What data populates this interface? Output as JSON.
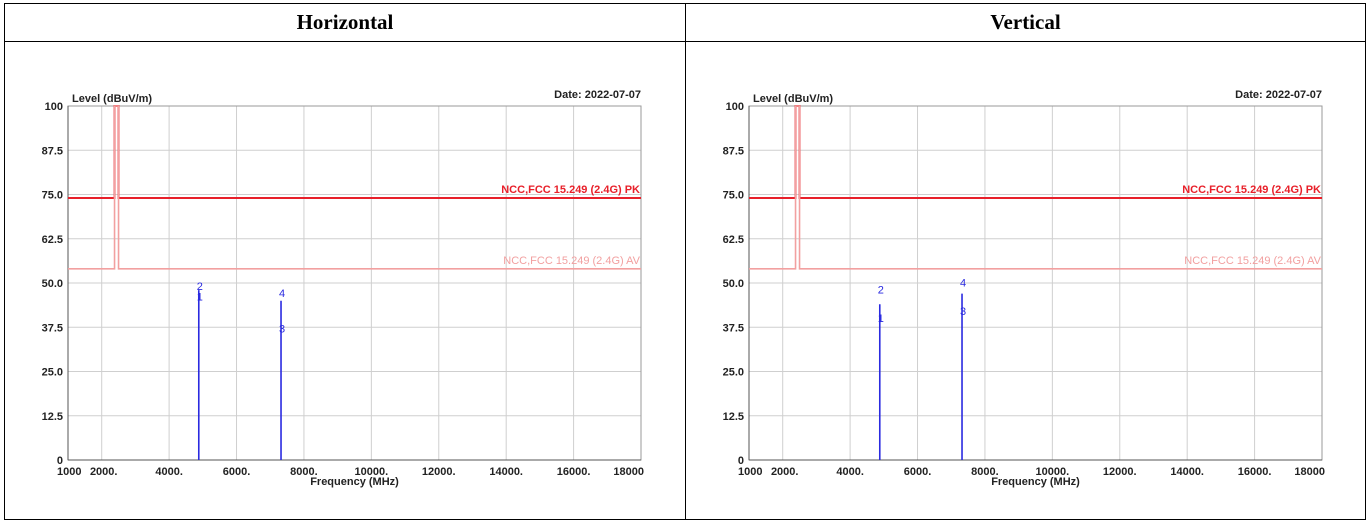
{
  "table": {
    "headers": [
      "Horizontal",
      "Vertical"
    ]
  },
  "chart_data": [
    {
      "type": "line",
      "panel": "Horizontal",
      "date_label": "Date: 2022-07-07",
      "ylabel": "Level (dBuV/m)",
      "xlabel": "Frequency (MHz)",
      "xlim": [
        1000,
        18000
      ],
      "ylim": [
        0,
        100
      ],
      "x_ticks": [
        "1000",
        "2000.",
        "4000.",
        "6000.",
        "8000.",
        "10000.",
        "12000.",
        "14000.",
        "16000.",
        "18000"
      ],
      "y_ticks": [
        "100",
        "87.5",
        "75.0",
        "62.5",
        "50.0",
        "37.5",
        "25.0",
        "12.5",
        "0"
      ],
      "grid": true,
      "limit_lines": [
        {
          "label": "NCC,FCC 15.249 (2.4G) PK",
          "y": 74,
          "color": "#e8202a"
        },
        {
          "label": "NCC,FCC 15.249 (2.4G) AV",
          "y": 54,
          "color": "#f2a0a0"
        }
      ],
      "carrier_x": 2440,
      "markers": [
        {
          "x": 4880,
          "bar_top": 48,
          "labels": [
            {
              "text": "2",
              "y": 48
            },
            {
              "text": "1",
              "y": 45
            }
          ]
        },
        {
          "x": 7320,
          "bar_top": 45,
          "labels": [
            {
              "text": "4",
              "y": 46
            },
            {
              "text": "3",
              "y": 36
            }
          ]
        }
      ]
    },
    {
      "type": "line",
      "panel": "Vertical",
      "date_label": "Date: 2022-07-07",
      "ylabel": "Level (dBuV/m)",
      "xlabel": "Frequency (MHz)",
      "xlim": [
        1000,
        18000
      ],
      "ylim": [
        0,
        100
      ],
      "x_ticks": [
        "1000",
        "2000.",
        "4000.",
        "6000.",
        "8000.",
        "10000.",
        "12000.",
        "14000.",
        "16000.",
        "18000"
      ],
      "y_ticks": [
        "100",
        "87.5",
        "75.0",
        "62.5",
        "50.0",
        "37.5",
        "25.0",
        "12.5",
        "0"
      ],
      "grid": true,
      "limit_lines": [
        {
          "label": "NCC,FCC 15.249 (2.4G) PK",
          "y": 74,
          "color": "#e8202a"
        },
        {
          "label": "NCC,FCC 15.249 (2.4G) AV",
          "y": 54,
          "color": "#f2a0a0"
        }
      ],
      "carrier_x": 2440,
      "markers": [
        {
          "x": 4880,
          "bar_top": 44,
          "labels": [
            {
              "text": "2",
              "y": 47
            },
            {
              "text": "1",
              "y": 39
            }
          ]
        },
        {
          "x": 7320,
          "bar_top": 47,
          "labels": [
            {
              "text": "4",
              "y": 49
            },
            {
              "text": "3",
              "y": 41
            }
          ]
        }
      ]
    }
  ]
}
